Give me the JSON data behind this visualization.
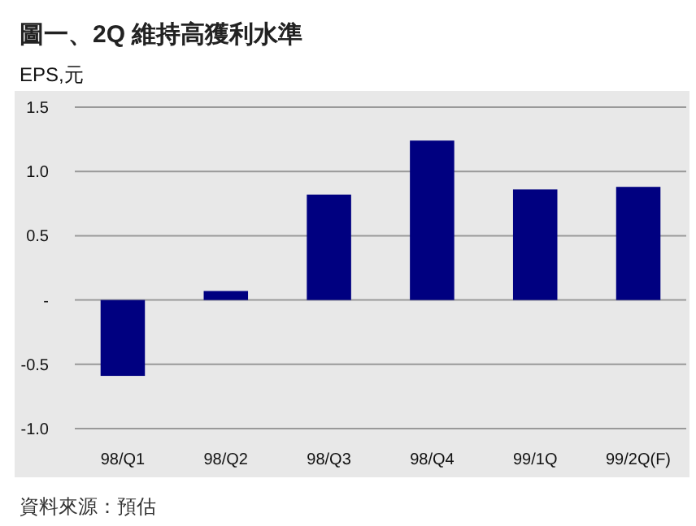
{
  "chart_data": {
    "type": "bar",
    "title": "圖一、2Q 維持高獲利水準",
    "ylabel": "EPS,元",
    "categories": [
      "98/Q1",
      "98/Q2",
      "98/Q3",
      "98/Q4",
      "99/1Q",
      "99/2Q(F)"
    ],
    "values": [
      -0.59,
      0.07,
      0.82,
      1.24,
      0.86,
      0.88
    ],
    "color": "#000080",
    "ylim": [
      -1.0,
      1.5
    ],
    "yticks": [
      {
        "value": -1,
        "label": "-1.0"
      },
      -0.5,
      {
        "value": 0,
        "label": "-"
      },
      0.5,
      {
        "value": 1,
        "label": "1.0"
      },
      1.5
    ],
    "grid": "y",
    "annotations": [
      "資料來源：預估"
    ]
  }
}
